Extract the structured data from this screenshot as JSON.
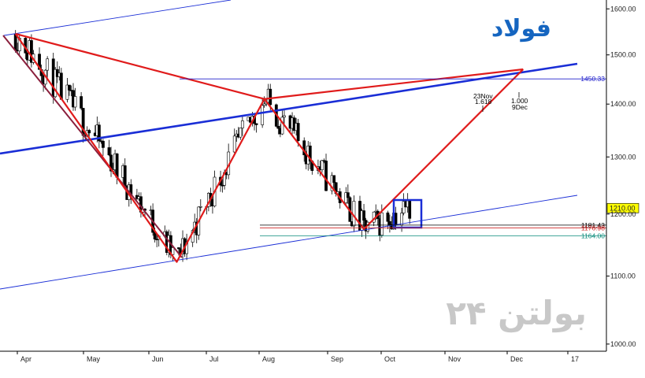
{
  "chart_data": {
    "type": "candlestick",
    "title": "فولاد",
    "watermark": "بولتن ۲۴",
    "x_ticks": [
      "Apr",
      "May",
      "Jun",
      "Jul",
      "Aug",
      "Sep",
      "Oct",
      "Nov",
      "Dec",
      "17"
    ],
    "y_ticks": [
      1000,
      1100,
      1200,
      1300,
      1400,
      1500,
      1600
    ],
    "y_scale": "log",
    "ylim": [
      990,
      1620
    ],
    "current_price": {
      "value": 1210,
      "label": "1210.00"
    },
    "levels": [
      {
        "value": 1450.33,
        "label": "1450.33",
        "color": "#2222cc"
      },
      {
        "value": 1181.43,
        "label": "1181.43",
        "color": "#000000"
      },
      {
        "value": 1176.98,
        "label": "1176.98",
        "color": "#cc2222"
      },
      {
        "value": 1164.0,
        "label": "1164.00",
        "color": "#0a8a7a"
      }
    ],
    "annotations": [
      {
        "date": "23Nov",
        "ratio": "1.618"
      },
      {
        "date": "9Dec",
        "ratio": "1.000"
      }
    ],
    "harmonic_pattern": [
      {
        "date": "2016-03-28",
        "value": 1545
      },
      {
        "date": "2016-06-17",
        "value": 1122
      },
      {
        "date": "2016-07-31",
        "value": 1410
      },
      {
        "date": "2016-09-19",
        "value": 1175
      },
      {
        "date": "2016-12-08",
        "value": 1470
      }
    ],
    "colors": {
      "pattern": "#e01b1b",
      "channel": "#1a2ed6",
      "diagonal": "#8a1f3c",
      "bull_candle": "#ffffff",
      "bear_candle": "#000000",
      "highlight_box": "#1a2ed6",
      "title": "#1565c0",
      "watermark": "#c8c8c8"
    }
  }
}
